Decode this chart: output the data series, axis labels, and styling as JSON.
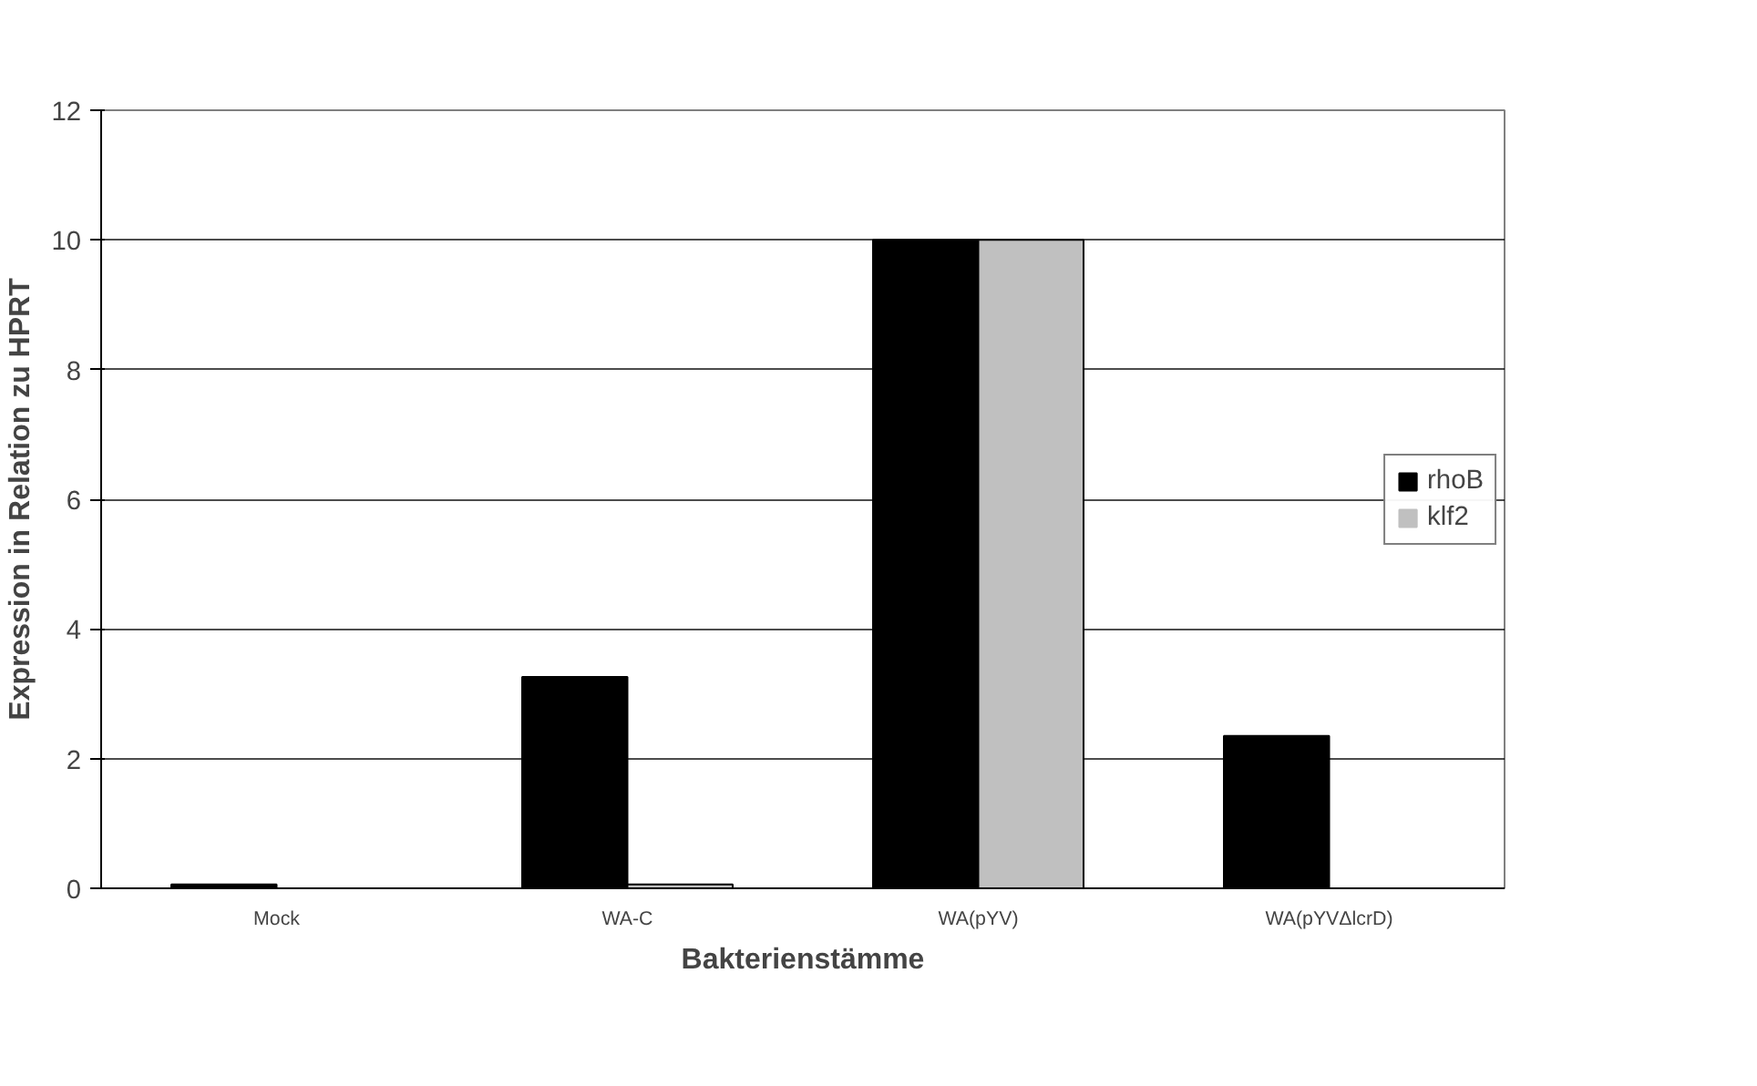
{
  "chart_data": {
    "type": "bar",
    "xlabel": "Bakterienstämme",
    "ylabel": "Expression in Relation zu HPRT",
    "categories": [
      "Mock",
      "WA-C",
      "WA(pYV)",
      "WA(pYVΔlcrD)"
    ],
    "series": [
      {
        "name": "rhoB",
        "color": "#000000",
        "values": [
          0.06,
          3.26,
          10,
          2.35
        ]
      },
      {
        "name": "klf2",
        "color": "#c0c0c0",
        "values": [
          0,
          0.06,
          10,
          0
        ]
      }
    ],
    "ylim": [
      0,
      12
    ],
    "yticks": [
      0,
      2,
      4,
      6,
      8,
      10,
      12
    ],
    "grid": "y",
    "legend": "right"
  }
}
